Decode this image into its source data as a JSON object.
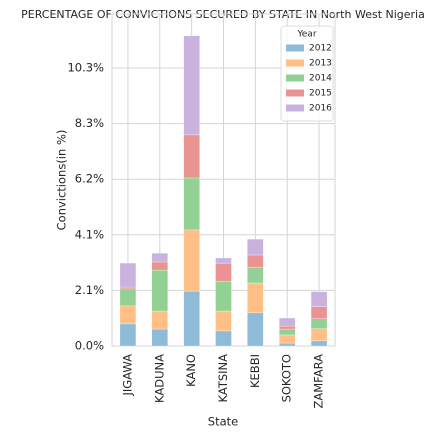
{
  "chart_data": {
    "type": "stacked_bar",
    "title": "PERCENTAGE OF CONVICTIONS SECURED BY STATE IN North West Nigeria",
    "x_label": "State",
    "y_label": "Convictions(in %)",
    "legend_title": "Year",
    "legend_position": "upper right",
    "grid": true,
    "categories": [
      "JIGAWA",
      "KADUNA",
      "KANO",
      "KATSINA",
      "KEBBI",
      "SOKOTO",
      "ZAMFARA"
    ],
    "series": [
      {
        "name": "2012",
        "color": "#8fbbd9",
        "values": [
          0.82,
          0.63,
          2.04,
          0.56,
          1.23,
          0.11,
          0.19
        ]
      },
      {
        "name": "2013",
        "color": "#ffbf86",
        "values": [
          0.67,
          0.67,
          2.27,
          0.74,
          1.11,
          0.3,
          0.45
        ]
      },
      {
        "name": "2014",
        "color": "#93d093",
        "values": [
          0.63,
          1.52,
          1.93,
          1.11,
          0.59,
          0.22,
          0.37
        ]
      },
      {
        "name": "2015",
        "color": "#ea9393",
        "values": [
          0.07,
          0.3,
          1.6,
          0.67,
          0.45,
          0.11,
          0.45
        ]
      },
      {
        "name": "2016",
        "color": "#c9b3de",
        "values": [
          0.89,
          0.33,
          3.68,
          0.19,
          0.59,
          0.3,
          0.56
        ]
      }
    ],
    "ylim": [
      0,
      12.33
    ],
    "yticks": [
      {
        "value": 0,
        "label": "0.0%"
      },
      {
        "value": 2.065,
        "label": "2.1%"
      },
      {
        "value": 4.13,
        "label": "4.1%"
      },
      {
        "value": 6.195,
        "label": "6.2%"
      },
      {
        "value": 8.26,
        "label": "8.3%"
      },
      {
        "value": 10.325,
        "label": "10.3%"
      }
    ]
  }
}
